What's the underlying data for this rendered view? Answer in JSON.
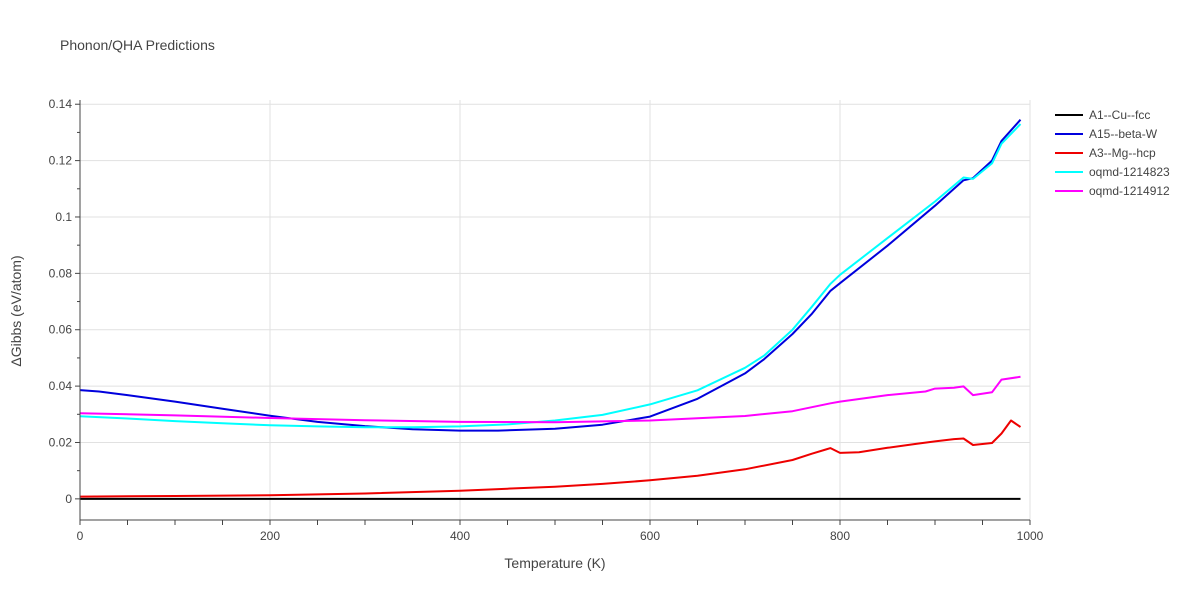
{
  "chart_data": {
    "type": "line",
    "title": "Phonon/QHA Predictions",
    "xlabel": "Temperature (K)",
    "ylabel": "ΔGibbs (eV/atom)",
    "xlim": [
      0,
      1000
    ],
    "ylim": [
      -0.0075,
      0.1415
    ],
    "x_ticks": [
      0,
      200,
      400,
      600,
      800,
      1000
    ],
    "y_ticks": [
      0,
      0.02,
      0.04,
      0.06,
      0.08,
      0.1,
      0.12,
      0.14
    ],
    "x_tick_labels": [
      "0",
      "200",
      "400",
      "600",
      "800",
      "1000"
    ],
    "y_tick_labels": [
      "0",
      "0.02",
      "0.04",
      "0.06",
      "0.08",
      "0.1",
      "0.12",
      "0.14"
    ],
    "grid": true,
    "legend_position": "top-right",
    "series": [
      {
        "name": "A1--Cu--fcc",
        "color": "#000000",
        "x": [
          0,
          990
        ],
        "y": [
          0,
          0
        ]
      },
      {
        "name": "A15--beta-W",
        "color": "#0000dd",
        "x": [
          0,
          20,
          50,
          100,
          150,
          200,
          250,
          300,
          350,
          400,
          440,
          500,
          550,
          600,
          650,
          700,
          720,
          750,
          770,
          790,
          800,
          850,
          900,
          930,
          940,
          960,
          970,
          990
        ],
        "y": [
          0.0386,
          0.0381,
          0.0368,
          0.0345,
          0.032,
          0.0295,
          0.0273,
          0.0258,
          0.0247,
          0.0242,
          0.0242,
          0.0249,
          0.0263,
          0.0292,
          0.0355,
          0.0445,
          0.0495,
          0.0585,
          0.0655,
          0.0738,
          0.0765,
          0.0898,
          0.104,
          0.113,
          0.1138,
          0.12,
          0.127,
          0.1345
        ]
      },
      {
        "name": "A3--Mg--hcp",
        "color": "#ee0000",
        "x": [
          0,
          100,
          200,
          300,
          400,
          450,
          500,
          550,
          600,
          650,
          700,
          750,
          770,
          785,
          790,
          800,
          820,
          850,
          880,
          900,
          920,
          930,
          940,
          960,
          970,
          980,
          990
        ],
        "y": [
          0.0008,
          0.001,
          0.0013,
          0.0019,
          0.0029,
          0.0036,
          0.0043,
          0.0053,
          0.0066,
          0.0082,
          0.0105,
          0.0138,
          0.016,
          0.0175,
          0.018,
          0.0163,
          0.0165,
          0.0181,
          0.0195,
          0.0204,
          0.0212,
          0.0214,
          0.0191,
          0.0198,
          0.0232,
          0.0278,
          0.0255
        ]
      },
      {
        "name": "oqmd-1214823",
        "color": "#00ffff",
        "x": [
          0,
          50,
          100,
          150,
          200,
          250,
          300,
          350,
          400,
          450,
          500,
          550,
          600,
          650,
          700,
          720,
          750,
          770,
          790,
          800,
          850,
          900,
          930,
          940,
          960,
          970,
          990
        ],
        "y": [
          0.0293,
          0.0285,
          0.0276,
          0.0268,
          0.0261,
          0.0257,
          0.0254,
          0.0254,
          0.0257,
          0.0264,
          0.0278,
          0.0298,
          0.0335,
          0.0385,
          0.0465,
          0.0508,
          0.06,
          0.068,
          0.0763,
          0.0795,
          0.0925,
          0.1055,
          0.114,
          0.1135,
          0.119,
          0.126,
          0.133
        ]
      },
      {
        "name": "oqmd-1214912",
        "color": "#ff00ff",
        "x": [
          0,
          100,
          200,
          300,
          400,
          500,
          600,
          700,
          750,
          790,
          800,
          850,
          890,
          900,
          920,
          930,
          940,
          960,
          970,
          990
        ],
        "y": [
          0.0304,
          0.0296,
          0.0287,
          0.0279,
          0.0273,
          0.0272,
          0.0278,
          0.0294,
          0.0311,
          0.0339,
          0.0345,
          0.0368,
          0.0381,
          0.0391,
          0.0394,
          0.0399,
          0.0368,
          0.0378,
          0.0423,
          0.0433
        ]
      }
    ]
  }
}
